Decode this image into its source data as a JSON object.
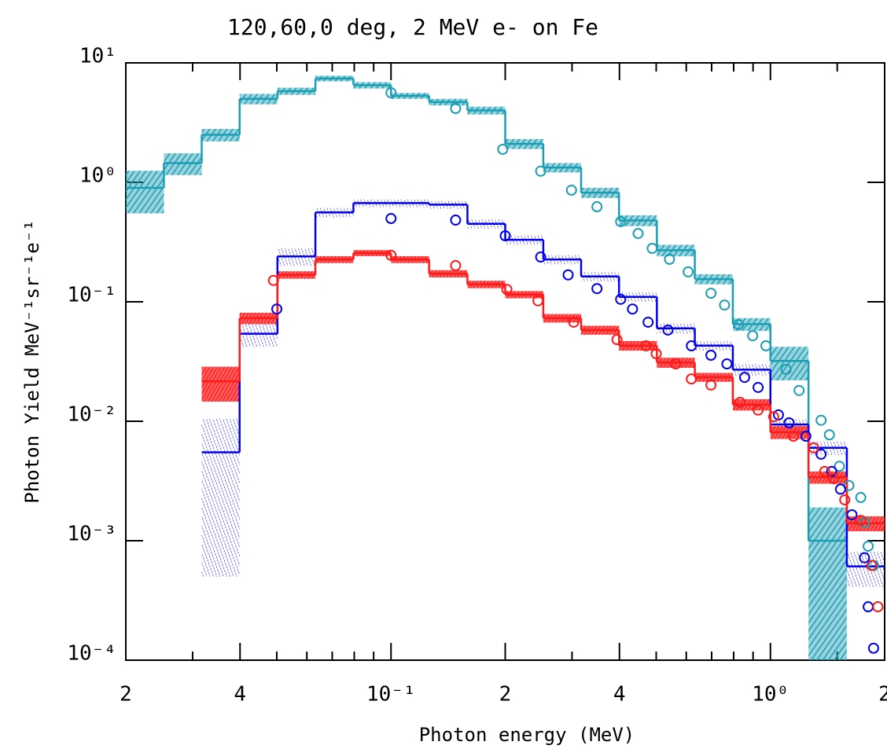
{
  "chart_data": {
    "type": "histogram",
    "title": "120,60,0 deg, 2 MeV e- on Fe",
    "xlabel": "Photon energy (MeV)",
    "ylabel": "Photon Yield MeV⁻¹sr⁻¹e⁻¹",
    "xscale": "log",
    "yscale": "log",
    "xlim": [
      0.02,
      2.0
    ],
    "ylim": [
      0.0001,
      10
    ],
    "xticks": [
      {
        "value": 0.02,
        "label": "2"
      },
      {
        "value": 0.04,
        "label": "4"
      },
      {
        "value": 0.1,
        "label": "10⁻¹"
      },
      {
        "value": 0.2,
        "label": "2"
      },
      {
        "value": 0.4,
        "label": "4"
      },
      {
        "value": 1,
        "label": "10⁰"
      },
      {
        "value": 2,
        "label": "2"
      }
    ],
    "xminorticks": [
      0.03,
      0.05,
      0.06,
      0.07,
      0.08,
      0.09,
      0.3,
      0.5,
      0.6,
      0.7,
      0.8,
      0.9,
      1.5
    ],
    "yticks": [
      {
        "value": 10,
        "label": "10¹"
      },
      {
        "value": 1,
        "label": "10⁰"
      },
      {
        "value": 0.1,
        "label": "10⁻¹"
      },
      {
        "value": 0.01,
        "label": "10⁻²"
      },
      {
        "value": 0.001,
        "label": "10⁻³"
      },
      {
        "value": 0.0001,
        "label": "10⁻⁴"
      }
    ],
    "bins": [
      0.02,
      0.0252,
      0.0317,
      0.0399,
      0.0502,
      0.0632,
      0.0796,
      0.1,
      0.126,
      0.159,
      0.2,
      0.252,
      0.317,
      0.399,
      0.502,
      0.632,
      0.796,
      1.0,
      1.26,
      1.59,
      2.0
    ],
    "series": [
      {
        "color": "#1a9eb3",
        "values": [
          0.9,
          1.45,
          2.5,
          5.0,
          5.8,
          7.4,
          6.5,
          5.3,
          4.7,
          4.0,
          2.1,
          1.33,
          0.82,
          0.48,
          0.27,
          0.155,
          0.065,
          0.032,
          0.001,
          null
        ],
        "errors": [
          0.35,
          0.3,
          0.3,
          0.5,
          0.4,
          0.4,
          0.4,
          0.3,
          0.3,
          0.3,
          0.2,
          0.12,
          0.08,
          0.05,
          0.03,
          0.015,
          0.008,
          0.01,
          0.0009,
          null
        ]
      },
      {
        "color": "#0000ee",
        "values": [
          null,
          null,
          0.0055,
          0.054,
          0.24,
          0.56,
          0.67,
          0.67,
          0.65,
          0.45,
          0.33,
          0.226,
          0.163,
          0.11,
          0.06,
          0.043,
          0.027,
          0.0094,
          0.006,
          0.00061
        ],
        "errors": [
          null,
          null,
          0.005,
          0.012,
          0.04,
          0.05,
          0.05,
          0.05,
          0.05,
          0.04,
          0.03,
          0.02,
          0.015,
          0.01,
          0.006,
          0.004,
          0.003,
          0.001,
          0.0008,
          0.0002
        ]
      },
      {
        "color": "#ff1a1a",
        "values": [
          null,
          null,
          0.0216,
          0.073,
          0.168,
          0.226,
          0.256,
          0.226,
          0.172,
          0.14,
          0.115,
          0.073,
          0.058,
          0.043,
          0.031,
          0.0234,
          0.0138,
          0.0081,
          0.0034,
          0.0014
        ],
        "errors": [
          null,
          null,
          0.007,
          0.008,
          0.012,
          0.015,
          0.015,
          0.015,
          0.012,
          0.01,
          0.008,
          0.006,
          0.005,
          0.004,
          0.003,
          0.002,
          0.0015,
          0.001,
          0.0004,
          0.0002
        ]
      }
    ],
    "points": [
      {
        "color": "#1a9eb3",
        "x": [
          0.1,
          0.148,
          0.197,
          0.248,
          0.299,
          0.349,
          0.403,
          0.448,
          0.488,
          0.542,
          0.607,
          0.697,
          0.757,
          0.824,
          0.898,
          0.973,
          1.1,
          1.19,
          1.36,
          1.43,
          1.52,
          1.61,
          1.73,
          1.77,
          1.81,
          1.87
        ],
        "y": [
          5.62,
          4.15,
          1.89,
          1.24,
          0.86,
          0.625,
          0.469,
          0.373,
          0.28,
          0.227,
          0.178,
          0.118,
          0.094,
          0.0645,
          0.052,
          0.0428,
          0.0272,
          0.0181,
          0.0102,
          0.0077,
          0.0042,
          0.0029,
          0.0023,
          0.00142,
          0.0009,
          0.00062
        ]
      },
      {
        "color": "#0000ee",
        "x": [
          0.05,
          0.1,
          0.148,
          0.2,
          0.248,
          0.293,
          0.349,
          0.403,
          0.433,
          0.476,
          0.537,
          0.619,
          0.697,
          0.768,
          0.855,
          0.928,
          1.05,
          1.12,
          1.24,
          1.36,
          1.45,
          1.53,
          1.64,
          1.77,
          1.81,
          1.87
        ],
        "y": [
          0.087,
          0.498,
          0.483,
          0.357,
          0.237,
          0.168,
          0.129,
          0.105,
          0.087,
          0.0675,
          0.058,
          0.0428,
          0.0357,
          0.0302,
          0.0233,
          0.0192,
          0.0113,
          0.0097,
          0.0075,
          0.0053,
          0.0038,
          0.0027,
          0.00165,
          0.00072,
          0.00028,
          0.000126
        ]
      },
      {
        "color": "#ff1a1a",
        "x": [
          0.049,
          0.1,
          0.148,
          0.202,
          0.244,
          0.303,
          0.394,
          0.47,
          0.5,
          0.563,
          0.619,
          0.697,
          0.832,
          0.928,
          1.02,
          1.15,
          1.3,
          1.39,
          1.47,
          1.57,
          1.73,
          1.85,
          1.92
        ],
        "y": [
          0.151,
          0.245,
          0.201,
          0.127,
          0.102,
          0.0675,
          0.0483,
          0.0428,
          0.0368,
          0.0302,
          0.0226,
          0.0201,
          0.0144,
          0.0124,
          0.0109,
          0.0075,
          0.006,
          0.0038,
          0.0033,
          0.0022,
          0.00148,
          0.00062,
          0.00028
        ]
      }
    ]
  }
}
